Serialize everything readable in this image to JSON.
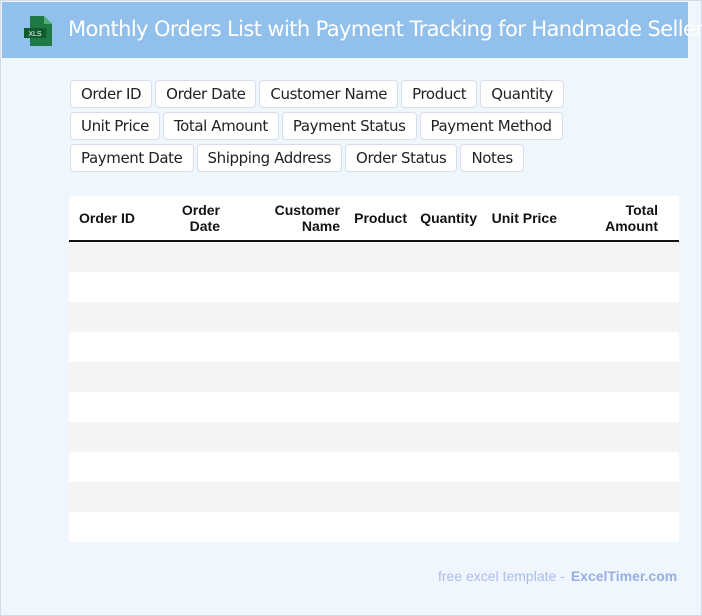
{
  "header": {
    "title": "Monthly Orders List with Payment Tracking for Handmade Sellers",
    "icon": "xls-file-icon",
    "icon_label": "XLS",
    "bg_color": "#92c0ec"
  },
  "fields": [
    "Order ID",
    "Order Date",
    "Customer Name",
    "Product",
    "Quantity",
    "Unit Price",
    "Total Amount",
    "Payment Status",
    "Payment Method",
    "Payment Date",
    "Shipping Address",
    "Order Status",
    "Notes"
  ],
  "table": {
    "columns": [
      "Order ID",
      "Order Date",
      "Customer Name",
      "Product",
      "Quantity",
      "Unit Price",
      "Total Amount"
    ],
    "rows": [
      [],
      [],
      [],
      [],
      [],
      [],
      [],
      [],
      [],
      []
    ]
  },
  "footer": {
    "text": "free excel template -",
    "brand": "ExcelTimer.com"
  }
}
